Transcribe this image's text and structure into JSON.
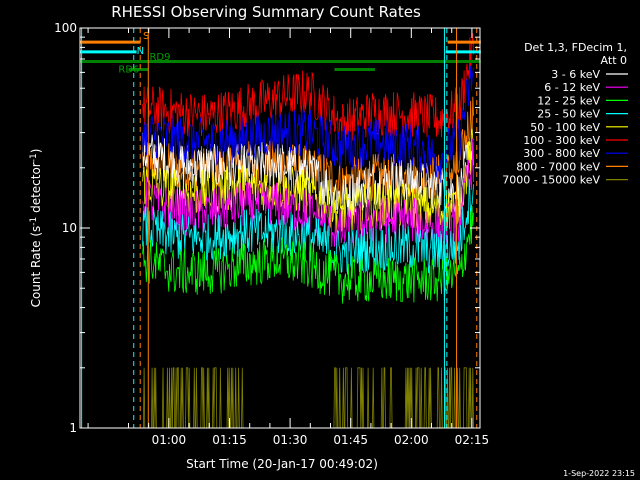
{
  "chart_data": {
    "type": "line",
    "title": "RHESSI Observing Summary Count Rates",
    "xlabel": "Start Time (20-Jan-17 00:49:02)",
    "ylabel": "Count Rate (s⁻¹ detector⁻¹)",
    "ylabel_parts": {
      "main": "Count Rate (s",
      "sup1": "-1",
      "mid": " detector",
      "sup2": "-1",
      "end": ")"
    },
    "y_scale": "log",
    "ylim": [
      1,
      100
    ],
    "y_ticks": [
      {
        "value": 1,
        "label": "1"
      },
      {
        "value": 10,
        "label": "10"
      },
      {
        "value": 100,
        "label": "100"
      }
    ],
    "x_range_minutes": [
      -11,
      88
    ],
    "x_ticks": [
      {
        "t": 11,
        "label": "01:00"
      },
      {
        "t": 26,
        "label": "01:15"
      },
      {
        "t": 41,
        "label": "01:30"
      },
      {
        "t": 56,
        "label": "01:45"
      },
      {
        "t": 71,
        "label": "02:00"
      },
      {
        "t": 86,
        "label": "02:15"
      }
    ],
    "legend_header": [
      "Det 1,3, FDecim 1,",
      "Att 0"
    ],
    "series": [
      {
        "name": "3 - 6 keV",
        "color": "#ffffff",
        "level": [
          24,
          21,
          20,
          20,
          21,
          19,
          14,
          17,
          17,
          16,
          14
        ]
      },
      {
        "name": "6 - 12 keV",
        "color": "#ff00ff",
        "level": [
          14,
          12,
          12,
          13,
          13,
          12,
          9.5,
          11,
          11,
          10,
          12
        ]
      },
      {
        "name": "12 - 25 keV",
        "color": "#00ff00",
        "level": [
          7,
          6,
          6,
          6.5,
          7,
          6.5,
          5.5,
          5.5,
          5.5,
          5.5,
          6
        ]
      },
      {
        "name": "25 - 50 keV",
        "color": "#00ffff",
        "level": [
          10,
          9,
          9,
          9.5,
          9.5,
          9,
          7.5,
          8,
          8,
          7.5,
          9
        ]
      },
      {
        "name": "50 - 100 keV",
        "color": "#ffff00",
        "level": [
          17,
          15,
          15,
          16,
          16,
          15,
          12,
          13,
          13,
          12,
          14
        ]
      },
      {
        "name": "100 - 300 keV",
        "color": "#ff0000",
        "level": [
          40,
          38,
          36,
          40,
          44,
          48,
          33,
          38,
          37,
          35,
          43
        ]
      },
      {
        "name": "300 - 800 keV",
        "color": "#0000ff",
        "level": [
          30,
          28,
          27,
          28,
          30,
          30,
          25,
          27,
          26,
          22,
          33
        ]
      },
      {
        "name": "800 - 7000 keV",
        "color": "#ff8000",
        "level": [
          22,
          20,
          20,
          21,
          21,
          20,
          17,
          18,
          18,
          18,
          22
        ]
      },
      {
        "name": "7000 - 15000 keV",
        "color": "#808000",
        "level": [
          1.5,
          1.4,
          1.3,
          1.3,
          1.4,
          1.5,
          1.4,
          1.5,
          1.3,
          1.2,
          1.4
        ]
      }
    ],
    "annotations": {
      "s_label": "S",
      "n_label": "N",
      "rd6_label": "RD6",
      "rd9_label": "RD9"
    },
    "timestamp": "1-Sep-2022 23:15"
  }
}
